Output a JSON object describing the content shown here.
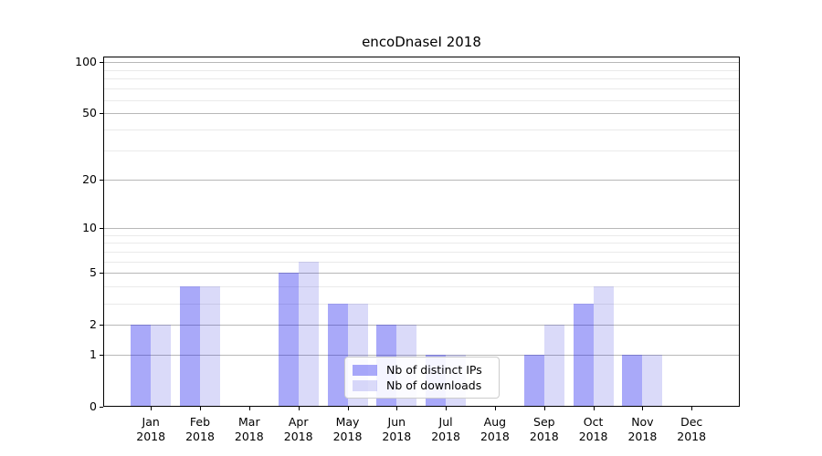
{
  "title": "encoDnaseI 2018",
  "legend": {
    "position": "lower center",
    "items": [
      {
        "label": "Nb of distinct IPs",
        "color": "rgba(10,10,238,0.35)"
      },
      {
        "label": "Nb of downloads",
        "color": "rgba(10,10,215,0.15)"
      }
    ]
  },
  "chart_data": {
    "type": "bar",
    "title": "encoDnaseI 2018",
    "categories": [
      "Jan 2018",
      "Feb 2018",
      "Mar 2018",
      "Apr 2018",
      "May 2018",
      "Jun 2018",
      "Jul 2018",
      "Aug 2018",
      "Sep 2018",
      "Oct 2018",
      "Nov 2018",
      "Dec 2018"
    ],
    "series": [
      {
        "name": "Nb of distinct IPs",
        "values": [
          2,
          4,
          0,
          5,
          3,
          2,
          1,
          0,
          1,
          3,
          1,
          0
        ]
      },
      {
        "name": "Nb of downloads",
        "values": [
          2,
          4,
          0,
          6,
          3,
          2,
          1,
          0,
          2,
          4,
          1,
          0
        ]
      }
    ],
    "xlabel": "",
    "ylabel": "",
    "yscale": "log10(1+x)",
    "ylim": [
      0,
      108
    ],
    "yticks": [
      0,
      1,
      2,
      5,
      10,
      20,
      50,
      100
    ],
    "minor_gridlines": [
      3,
      4,
      6,
      7,
      8,
      9,
      30,
      40,
      60,
      70,
      80,
      90
    ],
    "grid": true,
    "legend_position": "lower center"
  },
  "colors": {
    "major_grid": "#b8b8b8",
    "minor_grid": "#eaeaea",
    "axis": "#000000",
    "legend_border": "#cccccc"
  }
}
